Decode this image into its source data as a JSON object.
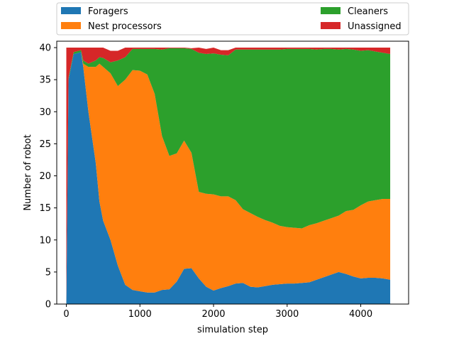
{
  "chart_data": {
    "type": "area",
    "stacked": true,
    "xlabel": "simulation step",
    "ylabel": "Number of robot",
    "xlim": [
      -130,
      4650
    ],
    "ylim": [
      0,
      41
    ],
    "xticks": [
      0,
      1000,
      2000,
      3000,
      4000
    ],
    "yticks": [
      0,
      5,
      10,
      15,
      20,
      25,
      30,
      35,
      40
    ],
    "legend": "top-outside-two-columns",
    "x": [
      0,
      30,
      100,
      200,
      230,
      300,
      400,
      450,
      500,
      600,
      700,
      800,
      900,
      1000,
      1100,
      1200,
      1300,
      1400,
      1500,
      1600,
      1700,
      1800,
      1900,
      2000,
      2100,
      2200,
      2300,
      2400,
      2500,
      2600,
      2700,
      2800,
      2900,
      3000,
      3100,
      3200,
      3300,
      3400,
      3500,
      3600,
      3700,
      3800,
      3900,
      4000,
      4100,
      4200,
      4300,
      4400
    ],
    "series": [
      {
        "name": "Foragers",
        "color": "#1f77b4",
        "values": [
          0,
          35,
          39,
          39.3,
          37,
          30,
          22,
          16,
          13,
          10,
          6,
          3,
          2.2,
          2,
          1.8,
          1.8,
          2.2,
          2.3,
          3.5,
          5.5,
          5.6,
          4,
          2.7,
          2.1,
          2.5,
          2.8,
          3.2,
          3.3,
          2.7,
          2.6,
          2.8,
          3,
          3.1,
          3.2,
          3.2,
          3.3,
          3.4,
          3.8,
          4.2,
          4.6,
          5,
          4.7,
          4.3,
          4,
          4.1,
          4.1,
          4,
          3.8
        ]
      },
      {
        "name": "Nest processors",
        "color": "#ff7f0e",
        "values": [
          0,
          0,
          0,
          0,
          0.5,
          7,
          15,
          21.5,
          24,
          26,
          28,
          32,
          34.3,
          34.4,
          34,
          31,
          24,
          20.8,
          20,
          20,
          18,
          13.5,
          14.5,
          15,
          14.3,
          14,
          13,
          11.5,
          11.5,
          11,
          10.3,
          9.7,
          9.1,
          8.8,
          8.7,
          8.5,
          8.9,
          8.8,
          8.8,
          8.8,
          8.8,
          9.8,
          10.4,
          11.4,
          11.9,
          12.1,
          12.4,
          12.6
        ]
      },
      {
        "name": "Cleaners",
        "color": "#2ca02c",
        "values": [
          0,
          0.3,
          0.3,
          0.3,
          0.5,
          0.5,
          1,
          1,
          1.4,
          1.7,
          4,
          3.5,
          3.3,
          3.4,
          4,
          7,
          13.5,
          16.8,
          16.4,
          14.4,
          16.2,
          21.7,
          21.8,
          22,
          22.1,
          22,
          23.5,
          24.9,
          25.5,
          26.1,
          26.6,
          27,
          27.5,
          27.8,
          27.9,
          28,
          27.5,
          27.1,
          26.8,
          26.4,
          25.9,
          25.3,
          25,
          24.1,
          23.6,
          23.2,
          22.8,
          22.6
        ]
      },
      {
        "name": "Unassigned",
        "color": "#d62728",
        "values": [
          40,
          4.7,
          0.7,
          0.4,
          2,
          2.5,
          2,
          1.5,
          1.6,
          1.8,
          1.5,
          1.5,
          0.2,
          0.2,
          0.2,
          0.2,
          0.3,
          0.1,
          0.1,
          0.1,
          0.1,
          0.8,
          0.8,
          0.9,
          0.7,
          0.8,
          0.3,
          0.3,
          0.3,
          0.3,
          0.3,
          0.3,
          0.3,
          0.2,
          0.2,
          0.2,
          0.2,
          0.3,
          0.2,
          0.2,
          0.3,
          0.2,
          0.3,
          0.5,
          0.4,
          0.6,
          0.8,
          1
        ]
      }
    ]
  }
}
